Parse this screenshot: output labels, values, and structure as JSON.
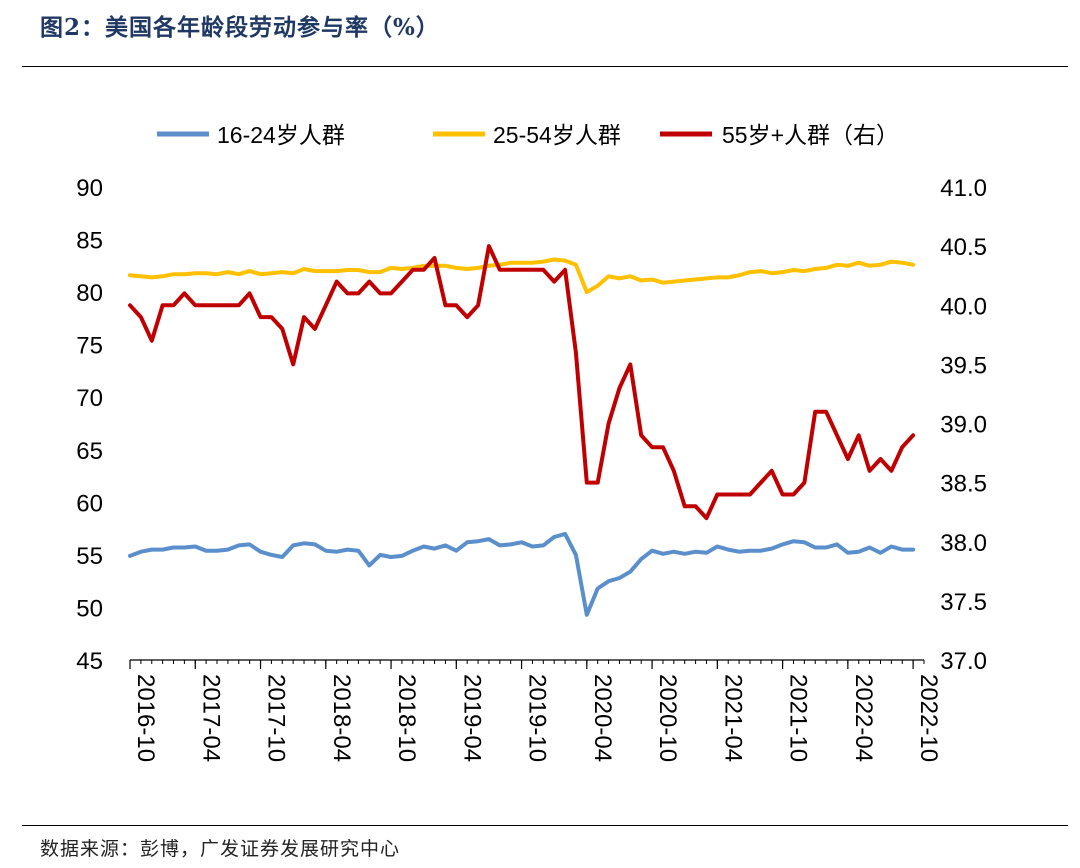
{
  "header": {
    "title": "图2：美国各年龄段劳动参与率（%）"
  },
  "footer": {
    "source": "数据来源：彭博，广发证券发展研究中心"
  },
  "chart_data": {
    "type": "line",
    "title": "图2：美国各年龄段劳动参与率（%）",
    "x_tick_labels": [
      "2016-10",
      "2017-04",
      "2017-10",
      "2018-04",
      "2018-10",
      "2019-04",
      "2019-10",
      "2020-04",
      "2020-10",
      "2021-04",
      "2021-10",
      "2022-04",
      "2022-10"
    ],
    "x_start": "2016-10",
    "x_end": "2022-11",
    "y_left": {
      "ylim": [
        45,
        90
      ],
      "ticks": [
        "45",
        "50",
        "55",
        "60",
        "65",
        "70",
        "75",
        "80",
        "85",
        "90"
      ]
    },
    "y_right": {
      "ylim": [
        37.0,
        41.0
      ],
      "ticks": [
        "37.0",
        "37.5",
        "38.0",
        "38.5",
        "39.0",
        "39.5",
        "40.0",
        "40.5",
        "41.0"
      ]
    },
    "grid": false,
    "legend_position": "top",
    "series": [
      {
        "name": "16-24岁人群",
        "axis": "left",
        "color": "#5b8fcb",
        "values": [
          54.9,
          55.3,
          55.5,
          55.5,
          55.7,
          55.7,
          55.8,
          55.4,
          55.4,
          55.5,
          55.9,
          56.0,
          55.3,
          55.0,
          54.8,
          55.9,
          56.1,
          56.0,
          55.4,
          55.3,
          55.5,
          55.4,
          54.0,
          55.0,
          54.8,
          54.9,
          55.4,
          55.8,
          55.6,
          55.9,
          55.4,
          56.2,
          56.3,
          56.5,
          55.9,
          56.0,
          56.2,
          55.8,
          55.9,
          56.7,
          57.0,
          55.0,
          49.3,
          51.8,
          52.5,
          52.8,
          53.4,
          54.6,
          55.4,
          55.1,
          55.3,
          55.1,
          55.3,
          55.2,
          55.8,
          55.5,
          55.3,
          55.4,
          55.4,
          55.6,
          56.0,
          56.3,
          56.2,
          55.7,
          55.7,
          56.0,
          55.2,
          55.3,
          55.7,
          55.2,
          55.8,
          55.5,
          55.5
        ]
      },
      {
        "name": "25-54岁人群",
        "axis": "left",
        "color": "#ffc000",
        "values": [
          81.6,
          81.5,
          81.4,
          81.5,
          81.7,
          81.7,
          81.8,
          81.8,
          81.7,
          81.9,
          81.7,
          82.0,
          81.7,
          81.8,
          81.9,
          81.8,
          82.2,
          82.0,
          82.0,
          82.0,
          82.1,
          82.1,
          81.9,
          81.9,
          82.3,
          82.2,
          82.3,
          82.5,
          82.5,
          82.5,
          82.3,
          82.2,
          82.3,
          82.5,
          82.6,
          82.8,
          82.8,
          82.8,
          82.9,
          83.1,
          83.0,
          82.6,
          80.0,
          80.6,
          81.5,
          81.3,
          81.5,
          81.1,
          81.2,
          80.9,
          81.0,
          81.1,
          81.2,
          81.3,
          81.4,
          81.4,
          81.6,
          81.9,
          82.0,
          81.8,
          81.9,
          82.1,
          82.0,
          82.2,
          82.3,
          82.6,
          82.5,
          82.8,
          82.5,
          82.6,
          82.9,
          82.8,
          82.6
        ]
      },
      {
        "name": "55岁+人群（右）",
        "axis": "right",
        "color": "#c00000",
        "values": [
          40.0,
          39.9,
          39.7,
          40.0,
          40.0,
          40.1,
          40.0,
          40.0,
          40.0,
          40.0,
          40.0,
          40.1,
          39.9,
          39.9,
          39.8,
          39.5,
          39.9,
          39.8,
          40.0,
          40.2,
          40.1,
          40.1,
          40.2,
          40.1,
          40.1,
          40.2,
          40.3,
          40.3,
          40.4,
          40.0,
          40.0,
          39.9,
          40.0,
          40.5,
          40.3,
          40.3,
          40.3,
          40.3,
          40.3,
          40.2,
          40.3,
          39.6,
          38.5,
          38.5,
          39.0,
          39.3,
          39.5,
          38.9,
          38.8,
          38.8,
          38.6,
          38.3,
          38.3,
          38.2,
          38.4,
          38.4,
          38.4,
          38.4,
          38.5,
          38.6,
          38.4,
          38.4,
          38.5,
          39.1,
          39.1,
          38.9,
          38.7,
          38.9,
          38.6,
          38.7,
          38.6,
          38.8,
          38.9
        ]
      }
    ]
  }
}
